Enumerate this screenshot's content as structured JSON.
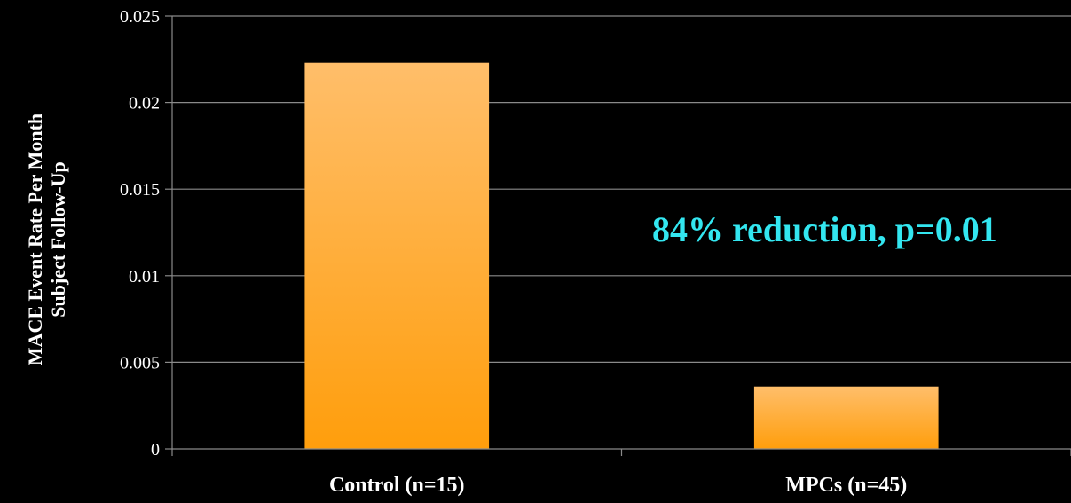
{
  "chart_data": {
    "type": "bar",
    "categories": [
      "Control (n=15)",
      "MPCs (n=45)"
    ],
    "values": [
      0.0223,
      0.0036
    ],
    "title": "",
    "xlabel": "",
    "ylabel": "MACE Event Rate Per Month\nSubject Follow-Up",
    "ylim": [
      0,
      0.025
    ],
    "yticks": [
      "0",
      "0.005",
      "0.01",
      "0.015",
      "0.02",
      "0.025"
    ],
    "grid": true,
    "annotations": [
      "84% reduction, p=0.01"
    ]
  },
  "colors": {
    "background": "#000000",
    "bar_top": "#ffbe6a",
    "bar_bottom": "#ff9e0c",
    "annotation": "#33e6f0",
    "text": "#ffffff",
    "grid": "#8a8a8a"
  }
}
